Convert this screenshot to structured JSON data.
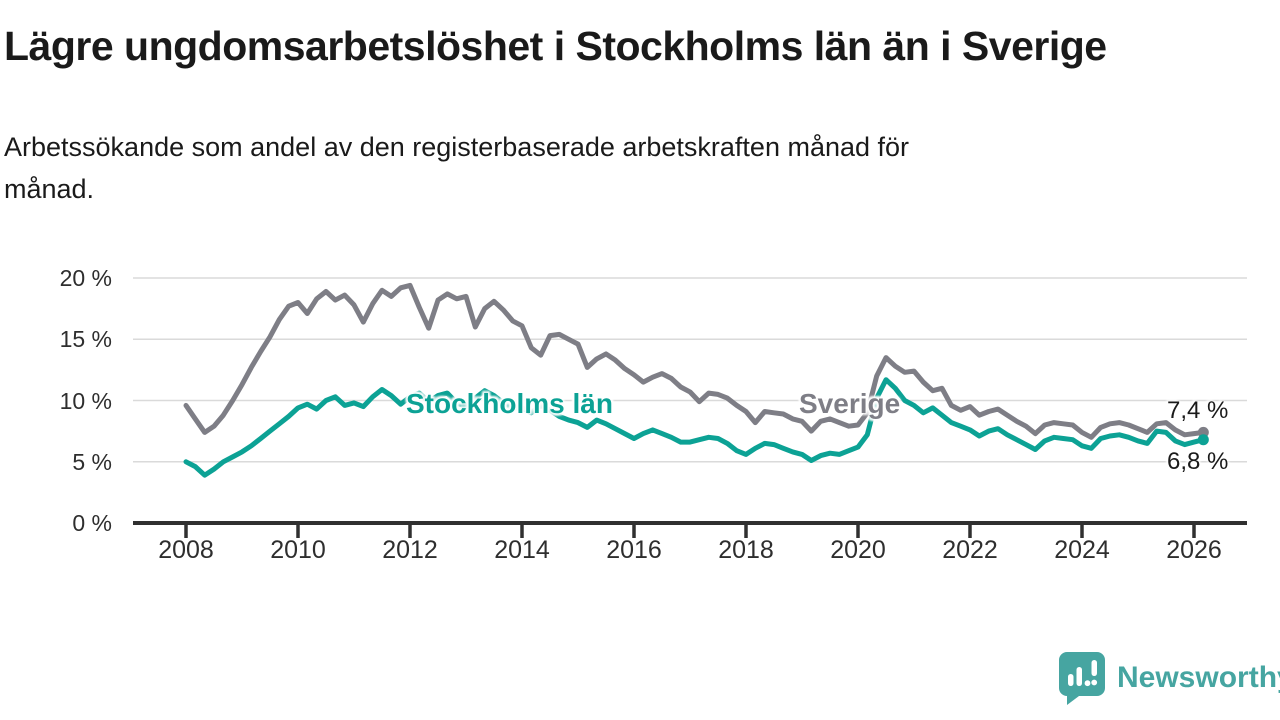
{
  "header": {
    "title": "Lägre ungdomsarbetslöshet i Stockholms län än i Sverige",
    "subtitle_lines": [
      "Arbetssökande som andel av den registerbaserade arbetskraften månad för",
      "månad."
    ]
  },
  "chart_data": {
    "type": "line",
    "title": "Lägre ungdomsarbetslöshet i Stockholms län än i Sverige",
    "subtitle": "Arbetssökande som andel av den registerbaserade arbetskraften månad för månad.",
    "unit": "%",
    "x_start": 2008.0,
    "x_step_years": 0.1666667,
    "xlim": [
      2007.05,
      2026.95
    ],
    "ylim": [
      0,
      20
    ],
    "grid": "horizontal",
    "legend_position": "inline-labels",
    "y_tick_labels": [
      "0 %",
      "5 %",
      "10 %",
      "15 %",
      "20 %"
    ],
    "y_tick_values": [
      0,
      5,
      10,
      15,
      20
    ],
    "x_tick_years": [
      2008,
      2010,
      2012,
      2014,
      2016,
      2018,
      2020,
      2022,
      2024,
      2026
    ],
    "colors": {
      "grid": "#dadada",
      "axis": "#303030",
      "text": "#1a1a1a"
    },
    "series": [
      {
        "name": "Sverige",
        "inline_label": "Sverige",
        "end_label": "7,4 %",
        "end_value": 7.4,
        "color": "#7e7e86",
        "values": [
          9.6,
          8.5,
          7.4,
          7.9,
          8.8,
          10.0,
          11.3,
          12.7,
          14.0,
          15.2,
          16.6,
          17.7,
          18.0,
          17.1,
          18.3,
          18.9,
          18.2,
          18.6,
          17.8,
          16.4,
          17.9,
          19.0,
          18.5,
          19.2,
          19.4,
          17.6,
          15.9,
          18.2,
          18.7,
          18.3,
          18.5,
          16.0,
          17.5,
          18.1,
          17.4,
          16.5,
          16.1,
          14.3,
          13.7,
          15.3,
          15.4,
          15.0,
          14.6,
          12.7,
          13.4,
          13.8,
          13.3,
          12.6,
          12.1,
          11.5,
          11.9,
          12.2,
          11.8,
          11.1,
          10.7,
          9.9,
          10.6,
          10.5,
          10.2,
          9.6,
          9.1,
          8.2,
          9.1,
          9.0,
          8.9,
          8.5,
          8.3,
          7.5,
          8.3,
          8.5,
          8.2,
          7.9,
          8.0,
          9.0,
          12.0,
          13.5,
          12.8,
          12.3,
          12.4,
          11.5,
          10.8,
          11.0,
          9.6,
          9.2,
          9.5,
          8.8,
          9.1,
          9.3,
          8.8,
          8.3,
          7.9,
          7.3,
          8.0,
          8.2,
          8.1,
          8.0,
          7.4,
          7.0,
          7.8,
          8.1,
          8.2,
          8.0,
          7.7,
          7.4,
          8.1,
          8.2,
          7.6,
          7.2,
          7.3,
          7.4
        ]
      },
      {
        "name": "Stockholms län",
        "inline_label": "Stockholms län",
        "end_label": "6,8 %",
        "end_value": 6.8,
        "color": "#0ca295",
        "values": [
          5.0,
          4.6,
          3.9,
          4.4,
          5.0,
          5.4,
          5.8,
          6.3,
          6.9,
          7.5,
          8.1,
          8.7,
          9.4,
          9.7,
          9.3,
          10.0,
          10.3,
          9.6,
          9.8,
          9.5,
          10.3,
          10.9,
          10.4,
          9.7,
          10.3,
          10.6,
          9.9,
          10.4,
          10.6,
          9.8,
          9.5,
          10.2,
          10.8,
          10.4,
          9.8,
          9.4,
          9.4,
          9.0,
          9.6,
          9.2,
          8.7,
          8.4,
          8.2,
          7.8,
          8.4,
          8.1,
          7.7,
          7.3,
          6.9,
          7.3,
          7.6,
          7.3,
          7.0,
          6.6,
          6.6,
          6.8,
          7.0,
          6.9,
          6.5,
          5.9,
          5.6,
          6.1,
          6.5,
          6.4,
          6.1,
          5.8,
          5.6,
          5.1,
          5.5,
          5.7,
          5.6,
          5.9,
          6.2,
          7.2,
          10.2,
          11.7,
          11.0,
          10.0,
          9.6,
          9.0,
          9.4,
          8.8,
          8.2,
          7.9,
          7.6,
          7.1,
          7.5,
          7.7,
          7.2,
          6.8,
          6.4,
          6.0,
          6.7,
          7.0,
          6.9,
          6.8,
          6.3,
          6.1,
          6.9,
          7.1,
          7.2,
          7.0,
          6.7,
          6.5,
          7.5,
          7.4,
          6.7,
          6.4,
          6.6,
          6.8
        ]
      }
    ]
  },
  "footer": {
    "brand": "Newsworthy",
    "brand_color": "#46a5a1",
    "logo_icon": "bar-chart-speech-bubble"
  }
}
